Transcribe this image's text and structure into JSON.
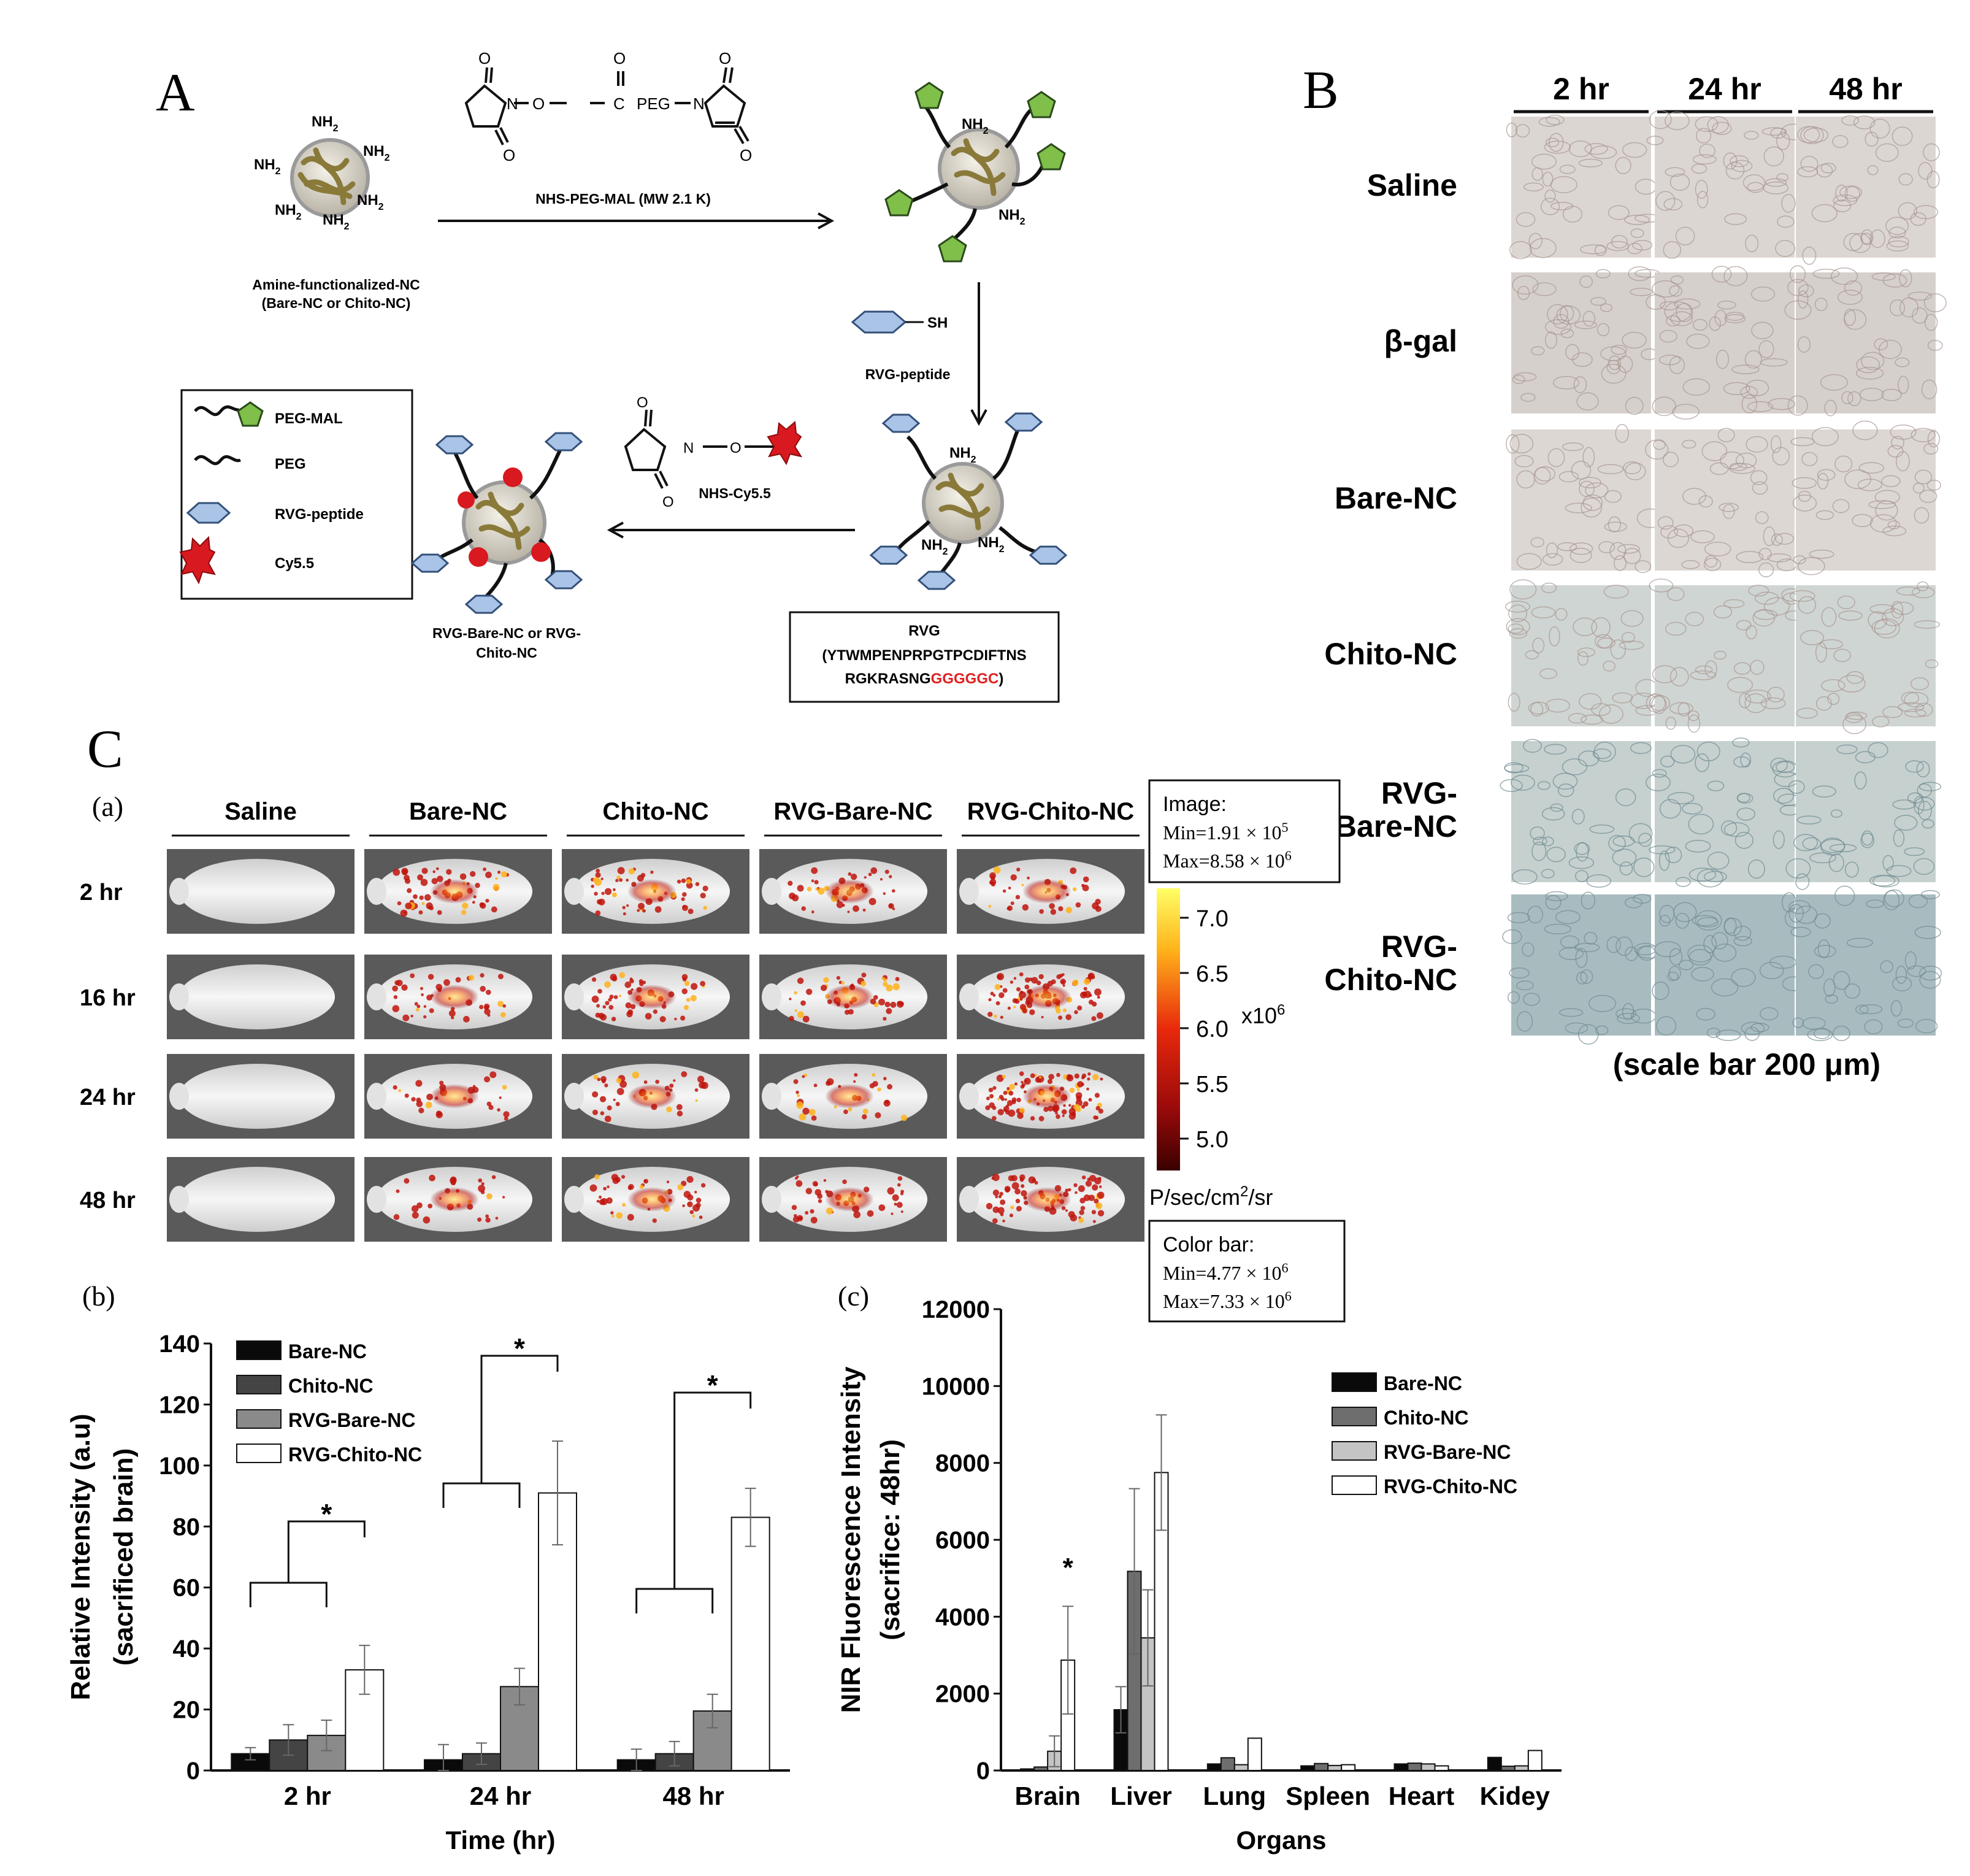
{
  "panel_a": {
    "letter": "A",
    "amine_label_line1": "Amine-functionalized-NC",
    "amine_label_line2": "(Bare-NC or Chito-NC)",
    "nh2": "NH",
    "sub2": "2",
    "reagent_o": "O",
    "reagent_n": "N",
    "reagent_c": "C",
    "reagent_peg": "PEG",
    "reagent_label": "NHS-PEG-MAL (MW 2.1 K)",
    "sh": "SH",
    "rvg_peptide_label": "RVG-peptide",
    "cy_label": "NHS-Cy5.5",
    "legend": [
      "PEG-MAL",
      "PEG",
      "RVG-peptide",
      "Cy5.5"
    ],
    "product_line1": "RVG-Bare-NC or RVG-",
    "product_line2": "Chito-NC",
    "rvg_box_line1": "RVG",
    "rvg_box_line2": "(YTWMPENPRPGTPCDIFTNS",
    "rvg_box_line3a": "RGKRASNG",
    "rvg_box_line3b": "GGGGGC",
    "rvg_box_line3c": ")"
  },
  "panel_b": {
    "letter": "B",
    "columns": [
      "2 hr",
      "24 hr",
      "48 hr"
    ],
    "rows": [
      "Saline",
      "β-gal",
      "Bare-NC",
      "Chito-NC",
      "RVG-\nBare-NC",
      "RVG-\nChito-NC"
    ],
    "scale": "(scale bar 200 μm)"
  },
  "panel_c": {
    "letter": "C",
    "sub_a": "(a)",
    "sub_b": "(b)",
    "sub_c": "(c)",
    "columns": [
      "Saline",
      "Bare-NC",
      "Chito-NC",
      "RVG-Bare-NC",
      "RVG-Chito-NC"
    ],
    "rows": [
      "2 hr",
      "16 hr",
      "24 hr",
      "48 hr"
    ],
    "image_box": {
      "title": "Image:",
      "min": "Min=1.91 × 10",
      "min_exp": "5",
      "max": "Max=8.58 × 10",
      "max_exp": "6"
    },
    "colorbar_ticks": [
      "7.0",
      "6.5",
      "6.0",
      "5.5",
      "5.0"
    ],
    "colorbar_mult": "x10",
    "colorbar_mult_exp": "6",
    "colorbar_unit": "P/sec/cm",
    "colorbar_unit_tail": "/sr",
    "colorbar_box": {
      "title": "Color bar:",
      "min": "Min=4.77 × 10",
      "min_exp": "6",
      "max": "Max=7.33 × 10",
      "max_exp": "6"
    }
  },
  "chart_data": [
    {
      "type": "bar",
      "panel": "(b)",
      "categories": [
        "2 hr",
        "24 hr",
        "48 hr"
      ],
      "series": [
        {
          "name": "Bare-NC",
          "values": [
            5.5,
            3.5,
            3.5
          ],
          "errors": [
            2,
            5,
            3.5
          ],
          "color": "#0a0a0a"
        },
        {
          "name": "Chito-NC",
          "values": [
            10,
            5.5,
            5.5
          ],
          "errors": [
            5,
            3.5,
            4
          ],
          "color": "#444444"
        },
        {
          "name": "RVG-Bare-NC",
          "values": [
            11.5,
            27.5,
            19.5
          ],
          "errors": [
            5,
            6,
            5.5
          ],
          "color": "#8a8a8a"
        },
        {
          "name": "RVG-Chito-NC",
          "values": [
            33,
            91,
            83
          ],
          "errors": [
            8,
            17,
            9.5
          ],
          "color": "#ffffff"
        }
      ],
      "xlabel": "Time (hr)",
      "ylabel_line1": "Relative Intensity (a.u)",
      "ylabel_line2": "(sacrificed brain)",
      "ylim": [
        0,
        140
      ],
      "yticks": [
        "0",
        "20",
        "40",
        "60",
        "80",
        "100",
        "120",
        "140"
      ],
      "significance": "*",
      "legend_position": "top-left"
    },
    {
      "type": "bar",
      "panel": "(c)",
      "categories": [
        "Brain",
        "Liver",
        "Lung",
        "Spleen",
        "Heart",
        "Kidey"
      ],
      "series": [
        {
          "name": "Bare-NC",
          "values": [
            40,
            1580,
            170,
            120,
            170,
            340
          ],
          "errors": [
            0,
            600,
            0,
            0,
            0,
            0
          ],
          "color": "#0a0a0a"
        },
        {
          "name": "Chito-NC",
          "values": [
            90,
            5180,
            330,
            180,
            190,
            110
          ],
          "errors": [
            0,
            2150,
            0,
            0,
            0,
            0
          ],
          "color": "#6e6e6e"
        },
        {
          "name": "RVG-Bare-NC",
          "values": [
            500,
            3450,
            150,
            130,
            170,
            120
          ],
          "errors": [
            400,
            1250,
            0,
            0,
            0,
            0
          ],
          "color": "#c4c4c4"
        },
        {
          "name": "RVG-Chito-NC",
          "values": [
            2870,
            7750,
            840,
            150,
            120,
            520
          ],
          "errors": [
            1400,
            1500,
            0,
            0,
            0,
            0
          ],
          "color": "#ffffff"
        }
      ],
      "xlabel": "Organs",
      "ylabel_line1": "NIR Fluorescence Intensity",
      "ylabel_line2": "(sacrifice: 48hr)",
      "ylim": [
        0,
        12000
      ],
      "yticks": [
        "0",
        "2000",
        "4000",
        "6000",
        "8000",
        "10000",
        "12000"
      ],
      "significance": "*",
      "legend_position": "top-right"
    }
  ]
}
